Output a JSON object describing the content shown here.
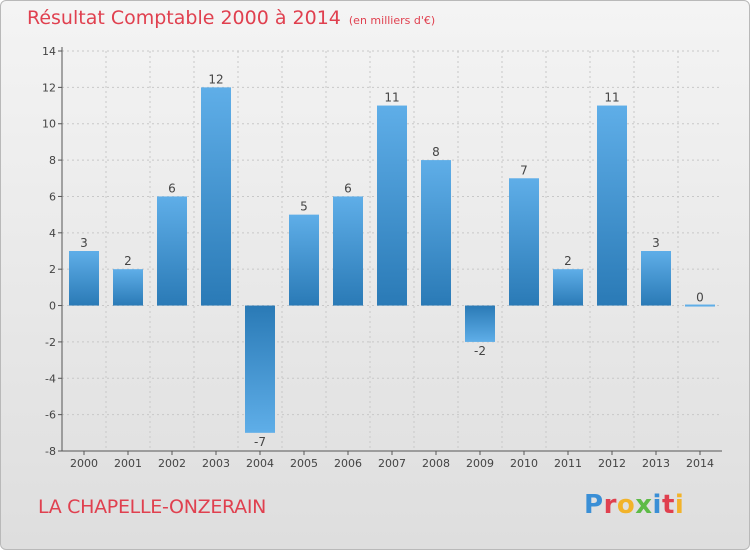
{
  "title": "Résultat Comptable 2000 à 2014",
  "unit": "(en milliers d'€)",
  "commune": "LA CHAPELLE-ONZERAIN",
  "logo": {
    "text": "Proxiti",
    "letter_colors": [
      "#3a8fd6",
      "#e0404f",
      "#f2b32a",
      "#5dbb46",
      "#3a8fd6",
      "#e0404f",
      "#f2b32a"
    ]
  },
  "colors": {
    "bar_light": "#5faee8",
    "bar_dark": "#2a7ab6",
    "text_red": "#e0404f",
    "axis": "#555555",
    "grid": "#c8c8c8"
  },
  "chart_data": {
    "type": "bar",
    "title": "Résultat Comptable 2000 à 2014",
    "ylabel": "en milliers d'€",
    "categories": [
      "2000",
      "2001",
      "2002",
      "2003",
      "2004",
      "2005",
      "2006",
      "2007",
      "2008",
      "2009",
      "2010",
      "2011",
      "2012",
      "2013",
      "2014"
    ],
    "values": [
      3,
      2,
      6,
      12,
      -7,
      5,
      6,
      11,
      8,
      -2,
      7,
      2,
      11,
      3,
      0
    ],
    "ylim": [
      -8,
      14
    ],
    "yticks": [
      14,
      12,
      10,
      8,
      6,
      4,
      2,
      0,
      -2,
      -4,
      -6,
      -8
    ],
    "grid": true
  }
}
